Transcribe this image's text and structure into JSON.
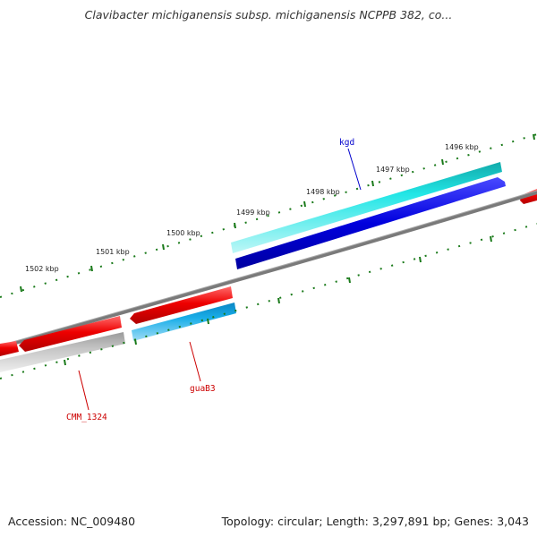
{
  "header": {
    "title": "Clavibacter michiganensis subsp. michiganensis NCPPB 382, co..."
  },
  "footer": {
    "accession": "Accession: NC_009480",
    "summary": "Topology: circular; Length: 3,297,891 bp; Genes: 3,043"
  },
  "map": {
    "tick_labels": [
      "1496 kbp",
      "1497 kbp",
      "1498 kbp",
      "1499 kbp",
      "1500 kbp",
      "1501 kbp",
      "1502 kbp"
    ],
    "gene_labels": [
      {
        "name": "kgd",
        "color": "#0000cc"
      },
      {
        "name": "guaB3",
        "color": "#cc0000"
      },
      {
        "name": "CMM_1324",
        "color": "#cc0000"
      }
    ],
    "colors": {
      "forward_cds": "#ee0000",
      "reverse_cds": "#0000dd",
      "backbone": "#808080",
      "tick": "#1a7a1a",
      "cyan_feature": "#22dddd",
      "light_blue_feature": "#1aaae6",
      "gray_feature": "#bbbbbb"
    }
  }
}
